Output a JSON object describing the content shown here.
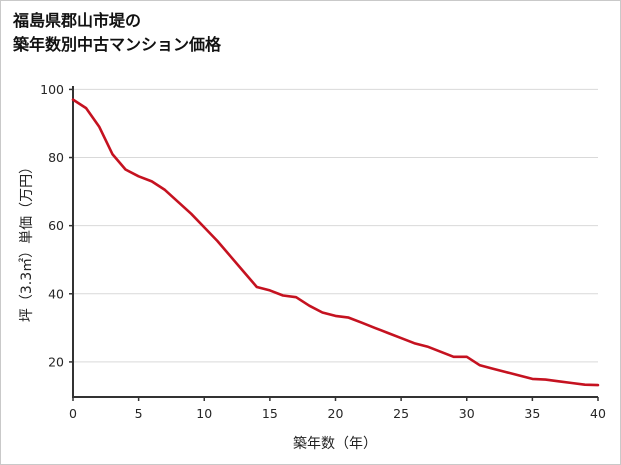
{
  "title": {
    "line1": "福島県郡山市堤の",
    "line2": "築年数別中古マンション価格"
  },
  "chart_data": {
    "type": "line",
    "title": "福島県郡山市堤の築年数別中古マンション価格",
    "xlabel": "築年数（年）",
    "ylabel": "坪（3.3㎡）単価（万円）",
    "x": [
      0,
      1,
      2,
      3,
      4,
      5,
      6,
      7,
      8,
      9,
      10,
      11,
      12,
      13,
      14,
      15,
      16,
      17,
      18,
      19,
      20,
      21,
      22,
      23,
      24,
      25,
      26,
      27,
      28,
      29,
      30,
      31,
      32,
      33,
      34,
      35,
      36,
      37,
      38,
      39,
      40
    ],
    "values": [
      97,
      94.5,
      89,
      81,
      76.5,
      74.5,
      73,
      70.5,
      67,
      63.5,
      59.5,
      55.5,
      51,
      46.5,
      42,
      41,
      39.5,
      39,
      36.5,
      34.5,
      33.5,
      33,
      31.5,
      30,
      28.5,
      27,
      25.5,
      24.5,
      23,
      21.5,
      21.5,
      19,
      18,
      17,
      16,
      15,
      14.8,
      14.3,
      13.8,
      13.3,
      13.2
    ],
    "xlim": [
      0,
      40
    ],
    "ylim": [
      9.7,
      101
    ],
    "xticks": [
      0,
      5,
      10,
      15,
      20,
      25,
      30,
      35,
      40
    ],
    "yticks": [
      20,
      40,
      60,
      80,
      100
    ],
    "grid": "horizontal",
    "legend": "none",
    "colors": {
      "line": "#c51220",
      "grid": "#d9d9d9",
      "axis": "#333333",
      "tick_text": "#262626",
      "background": "#ffffff",
      "border": "#c9c9c9"
    }
  }
}
